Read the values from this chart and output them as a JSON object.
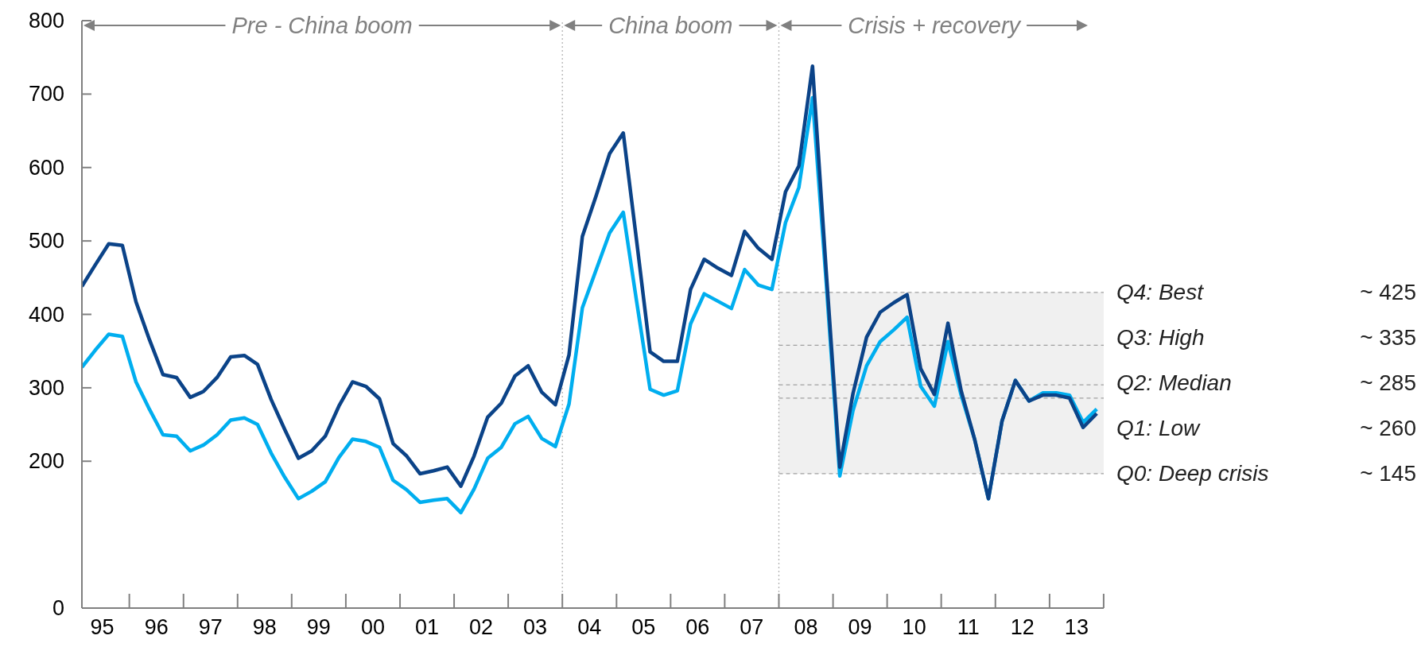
{
  "chart_data": {
    "type": "line",
    "annotations": [
      "Pre - China boom",
      "China boom",
      "Crisis + recovery",
      "Q4: Best",
      "~ 425",
      "Q3: High",
      "~ 335",
      "Q2: Median",
      "~ 285",
      "Q1: Low",
      "~ 260",
      "Q0: Deep crisis",
      "~ 145"
    ],
    "x": [
      "1995-02-15",
      "1995-05-15",
      "1995-08-15",
      "1995-11-15",
      "1996-02-15",
      "1996-05-15",
      "1996-08-15",
      "1996-11-15",
      "1997-02-15",
      "1997-05-15",
      "1997-08-15",
      "1997-11-15",
      "1998-02-15",
      "1998-05-15",
      "1998-08-15",
      "1998-11-15",
      "1999-02-15",
      "1999-05-15",
      "1999-08-15",
      "1999-11-15",
      "2000-02-15",
      "2000-05-15",
      "2000-08-15",
      "2000-11-15",
      "2001-02-15",
      "2001-05-15",
      "2001-08-15",
      "2001-11-15",
      "2002-02-15",
      "2002-05-15",
      "2002-08-15",
      "2002-11-15",
      "2003-02-15",
      "2003-05-15",
      "2003-08-15",
      "2003-11-15",
      "2004-02-15",
      "2004-05-15",
      "2004-08-15",
      "2004-11-15",
      "2005-02-15",
      "2005-05-15",
      "2005-08-15",
      "2005-11-15",
      "2006-02-15",
      "2006-05-15",
      "2006-08-15",
      "2006-11-15",
      "2007-02-15",
      "2007-05-15",
      "2007-08-15",
      "2007-11-15",
      "2008-02-15",
      "2008-05-15",
      "2008-08-15",
      "2008-11-15",
      "2009-02-15",
      "2009-05-15",
      "2009-08-15",
      "2009-11-15",
      "2010-02-15",
      "2010-05-15",
      "2010-08-15",
      "2010-11-15",
      "2011-02-15",
      "2011-05-15",
      "2011-08-15",
      "2011-11-15",
      "2012-02-15",
      "2012-05-15",
      "2012-08-15",
      "2012-11-15",
      "2013-02-15",
      "2013-05-15",
      "2013-08-15",
      "2013-11-15"
    ],
    "series": [
      {
        "color": "#00aeef",
        "values": [
          328,
          351,
          373,
          370,
          308,
          271,
          236,
          234,
          214,
          222,
          236,
          256,
          259,
          250,
          211,
          178,
          149,
          159,
          172,
          205,
          230,
          227,
          219,
          174,
          161,
          144,
          147,
          149,
          130,
          162,
          204,
          219,
          251,
          261,
          231,
          220,
          278,
          409,
          460,
          511,
          539,
          419,
          298,
          290,
          296,
          387,
          428,
          418,
          408,
          461,
          440,
          434,
          525,
          573,
          695,
          445,
          180,
          269,
          330,
          363,
          379,
          396,
          302,
          275,
          363,
          290,
          229,
          149,
          255,
          310,
          282,
          293,
          293,
          290,
          253,
          271
        ]
      },
      {
        "color": "#0b4388",
        "values": [
          438,
          467,
          496,
          494,
          417,
          366,
          318,
          314,
          287,
          295,
          314,
          342,
          344,
          332,
          284,
          243,
          204,
          214,
          234,
          275,
          308,
          302,
          285,
          224,
          207,
          183,
          187,
          192,
          166,
          207,
          260,
          279,
          316,
          330,
          294,
          277,
          345,
          506,
          561,
          619,
          647,
          502,
          349,
          336,
          336,
          434,
          475,
          463,
          453,
          513,
          490,
          475,
          567,
          602,
          738,
          460,
          192,
          292,
          369,
          403,
          416,
          427,
          326,
          291,
          388,
          296,
          229,
          149,
          255,
          310,
          282,
          290,
          290,
          286,
          246,
          265
        ]
      }
    ],
    "xlim": [
      "1995-02-15",
      "2014-01-01"
    ],
    "xticks": [
      {
        "value": "1995-07-02",
        "label": "95"
      },
      {
        "value": "1996-07-02",
        "label": "96"
      },
      {
        "value": "1997-07-02",
        "label": "97"
      },
      {
        "value": "1998-07-02",
        "label": "98"
      },
      {
        "value": "1999-07-02",
        "label": "99"
      },
      {
        "value": "2000-07-02",
        "label": "00"
      },
      {
        "value": "2001-07-02",
        "label": "01"
      },
      {
        "value": "2002-07-02",
        "label": "02"
      },
      {
        "value": "2003-07-02",
        "label": "03"
      },
      {
        "value": "2004-07-02",
        "label": "04"
      },
      {
        "value": "2005-07-02",
        "label": "05"
      },
      {
        "value": "2006-07-02",
        "label": "06"
      },
      {
        "value": "2007-07-02",
        "label": "07"
      },
      {
        "value": "2008-07-02",
        "label": "08"
      },
      {
        "value": "2009-07-02",
        "label": "09"
      },
      {
        "value": "2010-07-02",
        "label": "10"
      },
      {
        "value": "2011-07-02",
        "label": "11"
      },
      {
        "value": "2012-07-02",
        "label": "12"
      },
      {
        "value": "2013-07-02",
        "label": "13"
      }
    ],
    "ylim": [
      0,
      800
    ],
    "yticks": [
      0,
      200,
      300,
      400,
      500,
      600,
      700,
      800
    ],
    "ref_lines": [
      {
        "axis": "x",
        "value": "2004-01-01",
        "color": "#b4b4b4",
        "line_style": "dotted"
      },
      {
        "axis": "x",
        "value": "2008-01-01",
        "color": "#b4b4b4",
        "line_style": "dotted"
      },
      {
        "axis": "y",
        "value": 430,
        "color": "#a0a0a0",
        "line_style": "dashed"
      },
      {
        "axis": "y",
        "value": 358,
        "color": "#a0a0a0",
        "line_style": "dashed"
      },
      {
        "axis": "y",
        "value": 304,
        "color": "#a0a0a0",
        "line_style": "dashed"
      },
      {
        "axis": "y",
        "value": 286,
        "color": "#a0a0a0",
        "line_style": "dashed"
      },
      {
        "axis": "y",
        "value": 183,
        "color": "#a0a0a0",
        "line_style": "dashed"
      }
    ],
    "bands": [
      {
        "axis": "y",
        "from": 183,
        "to": 430,
        "color": "#f0f0f0"
      }
    ],
    "marker": "none",
    "line_style": "solid"
  }
}
